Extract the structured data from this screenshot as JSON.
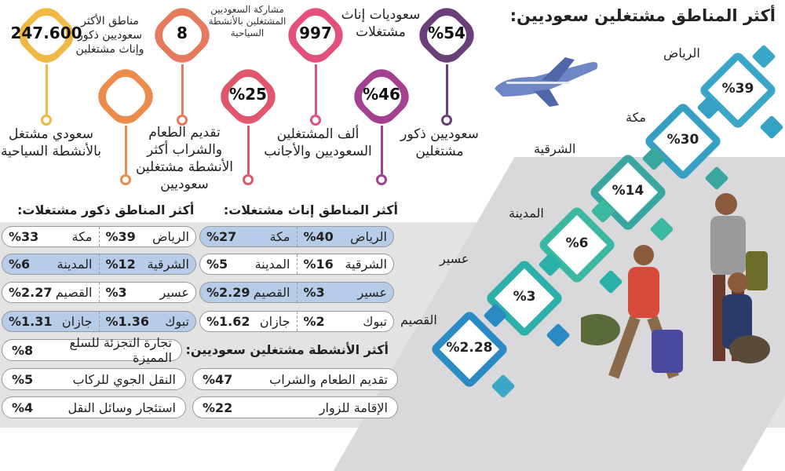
{
  "title": "أكثر المناطق مشتغلين سعوديين:",
  "pins": [
    {
      "value": "%54",
      "label": "سعوديين ذكور مشتغلين",
      "color": "#6b3f7a"
    },
    {
      "value": "%46",
      "label": "سعوديات إناث مشتغلات",
      "color": "#a3408f"
    },
    {
      "value": "997",
      "label": "ألف المشتغلين السعوديين والأجانب",
      "color": "#e2507c"
    },
    {
      "value": "%25",
      "label": "مشاركة السعوديين المشتغلين بالأنشطة السياحية",
      "color": "#e0566a"
    },
    {
      "value": "8",
      "label": "مناطق الأكثر سعوديين ذكور وإناث مشتغلين",
      "color": "#e57a5c"
    },
    {
      "value": "",
      "label": "تقديم الطعام والشراب أكثر الأنشطة مشتغلين سعوديين",
      "color": "#ec8c4c"
    },
    {
      "value": "247.600",
      "label": "سعودي مشتغل بالأنشطة السياحية",
      "color": "#f0b845"
    }
  ],
  "regions": [
    {
      "name": "الرياض",
      "value": "%39"
    },
    {
      "name": "مكة",
      "value": "%30"
    },
    {
      "name": "الشرقية",
      "value": "%14"
    },
    {
      "name": "المدينة",
      "value": "%6"
    },
    {
      "name": "عسير",
      "value": "%3"
    },
    {
      "name": "القصيم",
      "value": "%2.28"
    }
  ],
  "female": {
    "title": "أكثر المناطق إناث مشتغلات:",
    "rows": [
      [
        {
          "name": "الرياض",
          "value": "%40"
        },
        {
          "name": "مكة",
          "value": "%27"
        }
      ],
      [
        {
          "name": "الشرقية",
          "value": "%16"
        },
        {
          "name": "المدينة",
          "value": "%5"
        }
      ],
      [
        {
          "name": "عسير",
          "value": "%3"
        },
        {
          "name": "القصيم",
          "value": "%2.29"
        }
      ],
      [
        {
          "name": "تبوك",
          "value": "%2"
        },
        {
          "name": "جازان",
          "value": "%1.62"
        }
      ]
    ]
  },
  "male": {
    "title": "أكثر المناطق ذكور مشتغلات:",
    "rows": [
      [
        {
          "name": "الرياض",
          "value": "%39"
        },
        {
          "name": "مكة",
          "value": "%33"
        }
      ],
      [
        {
          "name": "الشرقية",
          "value": "%12"
        },
        {
          "name": "المدينة",
          "value": "%6"
        }
      ],
      [
        {
          "name": "عسير",
          "value": "%3"
        },
        {
          "name": "القصيم",
          "value": "%2.27"
        }
      ],
      [
        {
          "name": "تبوك",
          "value": "%1.36"
        },
        {
          "name": "جازان",
          "value": "%1.31"
        }
      ]
    ]
  },
  "activities": {
    "title": "أكثر الأنشطة مشتغلين سعوديين:",
    "items": [
      {
        "name": "تجارة التجزئة للسلع المميزة",
        "value": "%8"
      },
      {
        "name": "تقديم الطعام والشراب",
        "value": "%47"
      },
      {
        "name": "النقل الجوي للركاب",
        "value": "%5"
      },
      {
        "name": "الإقامة للزوار",
        "value": "%22"
      },
      {
        "name": "استئجار وسائل النقل",
        "value": "%4"
      }
    ]
  }
}
